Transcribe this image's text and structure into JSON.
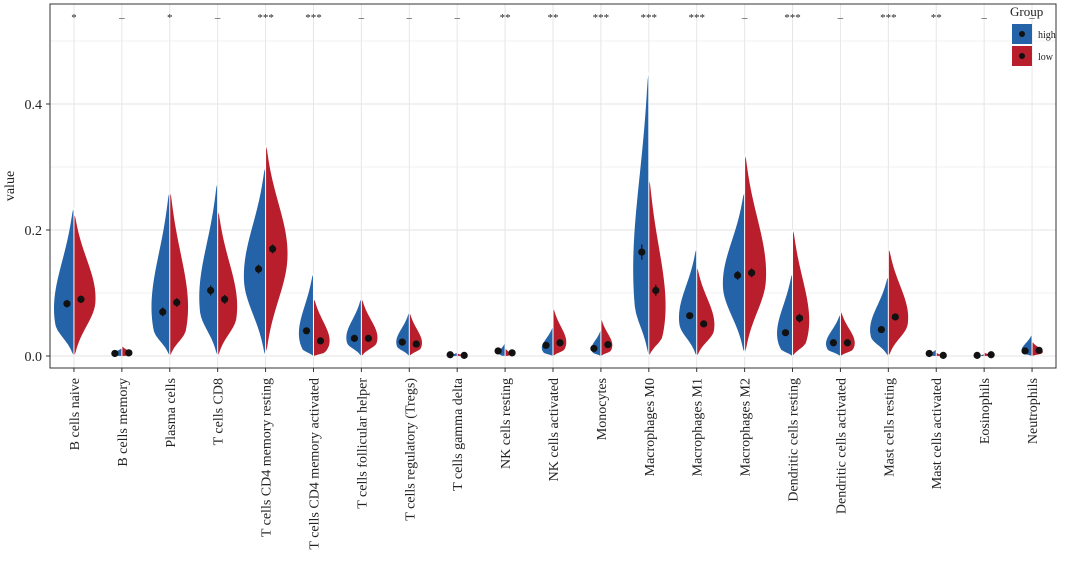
{
  "chart_data": {
    "type": "split-violin",
    "xlabel": "",
    "ylabel": "value",
    "ylim": [
      -0.02,
      0.54
    ],
    "yticks": [
      0.0,
      0.2,
      0.4
    ],
    "ytick_labels": [
      "0.0",
      "0.2",
      "0.4"
    ],
    "legend": {
      "title": "Group",
      "position": "top-right",
      "entries": [
        {
          "name": "high",
          "color": "#2563a8"
        },
        {
          "name": "low",
          "color": "#b81e2b"
        }
      ]
    },
    "categories": [
      {
        "name": "B cells naive",
        "sig": "*",
        "high": {
          "mean": 0.083,
          "err": 0.006,
          "min": 0.0,
          "max": 0.235,
          "mode": 0.05,
          "width": 1.0
        },
        "low": {
          "mean": 0.09,
          "err": 0.006,
          "min": 0.0,
          "max": 0.225,
          "mode": 0.085,
          "width": 1.0
        }
      },
      {
        "name": "B cells memory",
        "sig": "–",
        "high": {
          "mean": 0.004,
          "err": 0.001,
          "min": 0.0,
          "max": 0.012,
          "mode": 0.0,
          "width": 0.55
        },
        "low": {
          "mean": 0.005,
          "err": 0.001,
          "min": 0.0,
          "max": 0.015,
          "mode": 0.0,
          "width": 0.55
        }
      },
      {
        "name": "Plasma cells",
        "sig": "*",
        "high": {
          "mean": 0.07,
          "err": 0.007,
          "min": 0.0,
          "max": 0.26,
          "mode": 0.04,
          "width": 0.95
        },
        "low": {
          "mean": 0.085,
          "err": 0.007,
          "min": 0.0,
          "max": 0.26,
          "mode": 0.04,
          "width": 0.95
        }
      },
      {
        "name": "T cells CD8",
        "sig": "–",
        "high": {
          "mean": 0.104,
          "err": 0.008,
          "min": 0.0,
          "max": 0.275,
          "mode": 0.07,
          "width": 0.9
        },
        "low": {
          "mean": 0.09,
          "err": 0.007,
          "min": 0.0,
          "max": 0.23,
          "mode": 0.06,
          "width": 0.95
        }
      },
      {
        "name": "T cells CD4 memory resting",
        "sig": "***",
        "high": {
          "mean": 0.138,
          "err": 0.007,
          "min": 0.0,
          "max": 0.3,
          "mode": 0.12,
          "width": 1.0
        },
        "low": {
          "mean": 0.17,
          "err": 0.007,
          "min": 0.005,
          "max": 0.335,
          "mode": 0.16,
          "width": 1.0
        }
      },
      {
        "name": "T cells CD4 memory activated",
        "sig": "***",
        "high": {
          "mean": 0.04,
          "err": 0.004,
          "min": 0.0,
          "max": 0.13,
          "mode": 0.01,
          "width": 0.8
        },
        "low": {
          "mean": 0.024,
          "err": 0.003,
          "min": 0.0,
          "max": 0.09,
          "mode": 0.005,
          "width": 0.9
        }
      },
      {
        "name": "T cells follicular helper",
        "sig": "–",
        "high": {
          "mean": 0.028,
          "err": 0.002,
          "min": 0.0,
          "max": 0.09,
          "mode": 0.02,
          "width": 0.75
        },
        "low": {
          "mean": 0.028,
          "err": 0.002,
          "min": 0.0,
          "max": 0.09,
          "mode": 0.02,
          "width": 0.8
        }
      },
      {
        "name": "T cells regulatory (Tregs)",
        "sig": "–",
        "high": {
          "mean": 0.022,
          "err": 0.002,
          "min": 0.0,
          "max": 0.068,
          "mode": 0.015,
          "width": 0.65
        },
        "low": {
          "mean": 0.019,
          "err": 0.002,
          "min": 0.0,
          "max": 0.068,
          "mode": 0.012,
          "width": 0.65
        }
      },
      {
        "name": "T cells gamma delta",
        "sig": "–",
        "high": {
          "mean": 0.002,
          "err": 0.001,
          "min": 0.0,
          "max": 0.005,
          "mode": 0.0,
          "width": 0.3
        },
        "low": {
          "mean": 0.001,
          "err": 0.001,
          "min": 0.0,
          "max": 0.004,
          "mode": 0.0,
          "width": 0.3
        }
      },
      {
        "name": "NK cells resting",
        "sig": "**",
        "high": {
          "mean": 0.008,
          "err": 0.001,
          "min": 0.0,
          "max": 0.02,
          "mode": 0.0,
          "width": 0.35
        },
        "low": {
          "mean": 0.005,
          "err": 0.001,
          "min": 0.0,
          "max": 0.012,
          "mode": 0.0,
          "width": 0.3
        }
      },
      {
        "name": "NK cells activated",
        "sig": "**",
        "high": {
          "mean": 0.017,
          "err": 0.002,
          "min": 0.0,
          "max": 0.045,
          "mode": 0.005,
          "width": 0.6
        },
        "low": {
          "mean": 0.021,
          "err": 0.002,
          "min": 0.0,
          "max": 0.075,
          "mode": 0.01,
          "width": 0.7
        }
      },
      {
        "name": "Monocytes",
        "sig": "***",
        "high": {
          "mean": 0.012,
          "err": 0.002,
          "min": 0.0,
          "max": 0.04,
          "mode": 0.005,
          "width": 0.5
        },
        "low": {
          "mean": 0.018,
          "err": 0.002,
          "min": 0.0,
          "max": 0.058,
          "mode": 0.008,
          "width": 0.6
        }
      },
      {
        "name": "Macrophages M0",
        "sig": "***",
        "high": {
          "mean": 0.165,
          "err": 0.012,
          "min": 0.0,
          "max": 0.45,
          "mode": 0.08,
          "width": 0.8
        },
        "low": {
          "mean": 0.104,
          "err": 0.009,
          "min": 0.0,
          "max": 0.28,
          "mode": 0.03,
          "width": 0.9
        }
      },
      {
        "name": "Macrophages M1",
        "sig": "***",
        "high": {
          "mean": 0.064,
          "err": 0.004,
          "min": 0.0,
          "max": 0.17,
          "mode": 0.05,
          "width": 0.85
        },
        "low": {
          "mean": 0.051,
          "err": 0.004,
          "min": 0.0,
          "max": 0.14,
          "mode": 0.04,
          "width": 0.85
        }
      },
      {
        "name": "Macrophages M2",
        "sig": "–",
        "high": {
          "mean": 0.128,
          "err": 0.007,
          "min": 0.005,
          "max": 0.26,
          "mode": 0.11,
          "width": 1.0
        },
        "low": {
          "mean": 0.132,
          "err": 0.007,
          "min": 0.005,
          "max": 0.32,
          "mode": 0.12,
          "width": 1.0
        }
      },
      {
        "name": "Dendritic cells resting",
        "sig": "***",
        "high": {
          "mean": 0.037,
          "err": 0.005,
          "min": 0.0,
          "max": 0.13,
          "mode": 0.01,
          "width": 0.85
        },
        "low": {
          "mean": 0.06,
          "err": 0.007,
          "min": 0.0,
          "max": 0.2,
          "mode": 0.02,
          "width": 0.9
        }
      },
      {
        "name": "Dendritic cells activated",
        "sig": "–",
        "high": {
          "mean": 0.021,
          "err": 0.002,
          "min": 0.0,
          "max": 0.065,
          "mode": 0.01,
          "width": 0.75
        },
        "low": {
          "mean": 0.021,
          "err": 0.002,
          "min": 0.0,
          "max": 0.07,
          "mode": 0.01,
          "width": 0.75
        }
      },
      {
        "name": "Mast cells resting",
        "sig": "***",
        "high": {
          "mean": 0.042,
          "err": 0.003,
          "min": 0.0,
          "max": 0.125,
          "mode": 0.03,
          "width": 0.9
        },
        "low": {
          "mean": 0.062,
          "err": 0.004,
          "min": 0.0,
          "max": 0.17,
          "mode": 0.05,
          "width": 0.95
        }
      },
      {
        "name": "Mast cells activated",
        "sig": "**",
        "high": {
          "mean": 0.004,
          "err": 0.001,
          "min": 0.0,
          "max": 0.01,
          "mode": 0.0,
          "width": 0.35
        },
        "low": {
          "mean": 0.001,
          "err": 0.001,
          "min": 0.0,
          "max": 0.005,
          "mode": 0.0,
          "width": 0.25
        }
      },
      {
        "name": "Eosinophils",
        "sig": "–",
        "high": {
          "mean": 0.001,
          "err": 0.001,
          "min": 0.0,
          "max": 0.003,
          "mode": 0.0,
          "width": 0.2
        },
        "low": {
          "mean": 0.002,
          "err": 0.001,
          "min": 0.0,
          "max": 0.005,
          "mode": 0.0,
          "width": 0.4
        }
      },
      {
        "name": "Neutrophils",
        "sig": "–",
        "high": {
          "mean": 0.008,
          "err": 0.001,
          "min": 0.0,
          "max": 0.033,
          "mode": 0.004,
          "width": 0.55
        },
        "low": {
          "mean": 0.009,
          "err": 0.001,
          "min": 0.0,
          "max": 0.022,
          "mode": 0.004,
          "width": 0.55
        }
      }
    ]
  }
}
